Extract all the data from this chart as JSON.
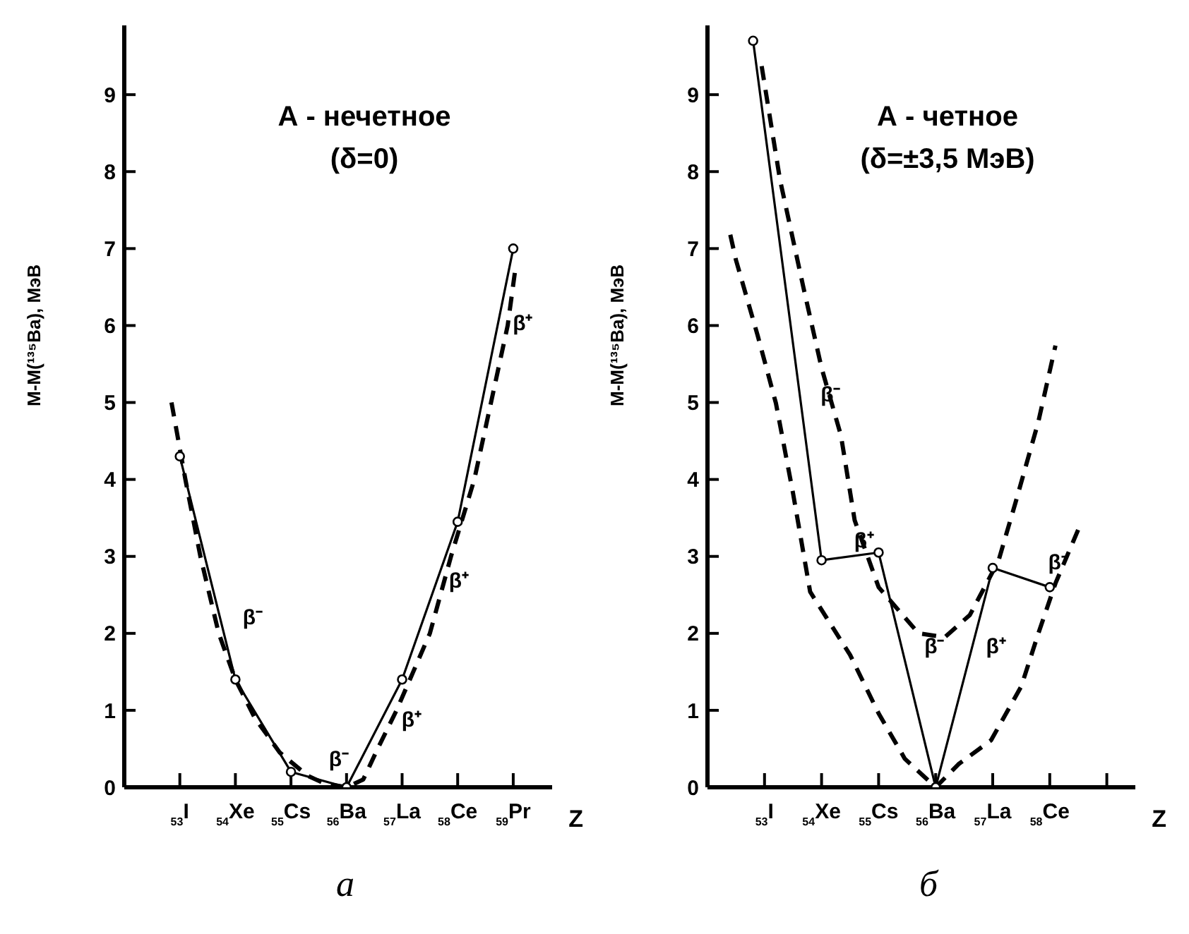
{
  "chart_data": [
    {
      "type": "line",
      "title": "А - нечетное",
      "subtitle": "(δ=0)",
      "xlabel": "Z",
      "ylabel": "M-M(¹³⁵Ba), МэВ",
      "xlim": [
        52,
        59.7
      ],
      "ylim": [
        0,
        9.9
      ],
      "xticks": [
        {
          "value": 53,
          "label": "$_{53}$I"
        },
        {
          "value": 54,
          "label": "$_{54}$Xe"
        },
        {
          "value": 55,
          "label": "$_{55}$Cs"
        },
        {
          "value": 56,
          "label": "$_{56}$Ba"
        },
        {
          "value": 57,
          "label": "$_{57}$La"
        },
        {
          "value": 58,
          "label": "$_{58}$Ce"
        },
        {
          "value": 59,
          "label": "$_{59}$Pr"
        }
      ],
      "yticks": [
        0,
        1,
        2,
        3,
        4,
        5,
        6,
        7,
        8,
        9
      ],
      "series": [
        {
          "type": "line",
          "color": "#000000",
          "marker": "circle",
          "line_style": "solid",
          "x": [
            53,
            54,
            55,
            56,
            57,
            58,
            59
          ],
          "values": [
            4.3,
            1.4,
            0.2,
            0,
            1.4,
            3.45,
            7.0
          ]
        },
        {
          "type": "line",
          "color": "#000000",
          "marker": "none",
          "line_style": "dashed",
          "x": [
            52.85,
            53.1,
            53.37,
            53.7,
            54.0,
            54.35,
            54.8,
            55.3,
            55.6,
            56.0,
            56.3,
            56.56,
            56.9,
            57.2,
            57.5,
            57.88,
            58.3,
            58.6,
            58.9,
            59.05
          ],
          "values": [
            5.0,
            4.0,
            3.0,
            2.0,
            1.4,
            0.9,
            0.45,
            0.15,
            0.05,
            0.0,
            0.1,
            0.5,
            1.0,
            1.5,
            2.0,
            3.0,
            4.0,
            5.0,
            6.0,
            6.8
          ]
        }
      ],
      "annotations": [
        {
          "text": "β⁻",
          "x": 53.8,
          "y": 1.98
        },
        {
          "text": "β⁻",
          "x": 55.35,
          "y": 0.13
        },
        {
          "text": "β⁺",
          "x": 56.66,
          "y": 0.65
        },
        {
          "text": "β⁺",
          "x": 57.51,
          "y": 2.45
        },
        {
          "text": "β⁺",
          "x": 58.66,
          "y": 5.8
        },
        "а"
      ]
    },
    {
      "type": "line",
      "title": "А - четное",
      "subtitle": "(δ=±3,5 МэВ)",
      "xlabel": "Z",
      "ylabel": "M-M(¹³⁵Ba), МэВ",
      "xlim": [
        52,
        59.5
      ],
      "ylim": [
        0,
        9.9
      ],
      "xticks": [
        {
          "value": 53,
          "label": "$_{53}$I"
        },
        {
          "value": 54,
          "label": "$_{54}$Xe"
        },
        {
          "value": 55,
          "label": "$_{55}$Cs"
        },
        {
          "value": 56,
          "label": "$_{56}$Ba"
        },
        {
          "value": 57,
          "label": "$_{57}$La"
        },
        {
          "value": 58,
          "label": "$_{58}$Ce"
        },
        {
          "value": 59,
          "label": null
        }
      ],
      "yticks": [
        0,
        1,
        2,
        3,
        4,
        5,
        6,
        7,
        8,
        9
      ],
      "series": [
        {
          "type": "line",
          "color": "#000000",
          "marker": "circle",
          "line_style": "solid",
          "x": [
            52.8,
            54,
            55,
            56,
            57,
            58
          ],
          "values": [
            9.7,
            2.95,
            3.05,
            0,
            2.85,
            2.6
          ]
        },
        {
          "type": "line",
          "color": "#000000",
          "marker": "none",
          "line_style": "dashed",
          "x": [
            52.95,
            53.27,
            53.68,
            54.0,
            54.34,
            54.58,
            55.0,
            55.7,
            56.16,
            56.6,
            57.1,
            57.4,
            57.8,
            58.1
          ],
          "values": [
            9.37,
            7.9,
            6.5,
            5.45,
            4.57,
            3.47,
            2.6,
            2.0,
            1.95,
            2.24,
            2.94,
            3.7,
            4.75,
            5.74
          ]
        },
        {
          "type": "line",
          "color": "#000000",
          "marker": "none",
          "line_style": "dashed",
          "x": [
            52.4,
            52.5,
            52.88,
            53.2,
            53.5,
            53.8,
            54.5,
            55.0,
            55.46,
            56.0,
            56.4,
            56.97,
            57.5,
            57.8,
            58.1,
            58.5
          ],
          "values": [
            7.18,
            6.85,
            5.87,
            4.99,
            3.82,
            2.54,
            1.72,
            0.96,
            0.37,
            0.0,
            0.3,
            0.61,
            1.31,
            2.0,
            2.65,
            3.35
          ]
        }
      ],
      "annotations": [
        {
          "text": "β⁻",
          "x": 53.66,
          "y": 4.87
        },
        {
          "text": "β⁺",
          "x": 54.25,
          "y": 2.98
        },
        {
          "text": "β⁻",
          "x": 55.48,
          "y": 1.6
        },
        {
          "text": "β⁺",
          "x": 56.56,
          "y": 1.6
        },
        {
          "text": "β⁻",
          "x": 57.65,
          "y": 2.69
        },
        "б"
      ]
    }
  ]
}
